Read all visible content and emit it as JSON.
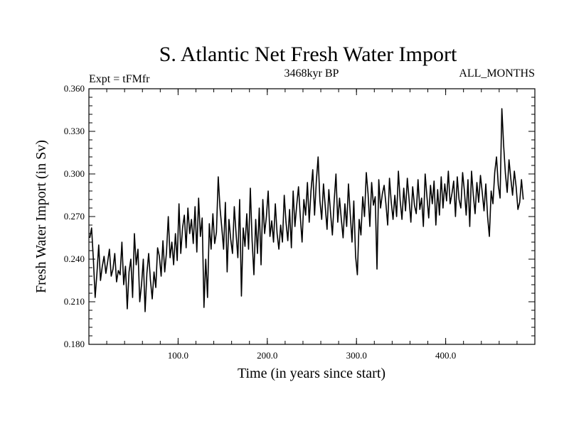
{
  "chart_data": {
    "type": "line",
    "title": "S. Atlantic Net Fresh Water Import",
    "subtitle_left": "Expt = tFMfr",
    "subtitle_center": "3468kyr BP",
    "subtitle_right": "ALL_MONTHS",
    "xlabel": "Time (in years since start)",
    "ylabel": "Fresh Water Import (in Sv)",
    "xlim": [
      0,
      500
    ],
    "ylim": [
      0.18,
      0.36
    ],
    "x_ticks": [
      100,
      200,
      300,
      400
    ],
    "x_tick_labels": [
      "100.0",
      "200.0",
      "300.0",
      "400.0"
    ],
    "y_ticks": [
      0.18,
      0.21,
      0.24,
      0.27,
      0.3,
      0.33,
      0.36
    ],
    "y_tick_labels": [
      "0.180",
      "0.210",
      "0.240",
      "0.270",
      "0.300",
      "0.330",
      "0.360"
    ],
    "series": [
      {
        "name": "Net Fresh Water Import",
        "color": "#000000",
        "x_start": 1,
        "x_step": 2,
        "values": [
          0.255,
          0.262,
          0.24,
          0.213,
          0.23,
          0.25,
          0.225,
          0.235,
          0.242,
          0.23,
          0.238,
          0.247,
          0.228,
          0.233,
          0.244,
          0.224,
          0.232,
          0.229,
          0.252,
          0.222,
          0.235,
          0.205,
          0.231,
          0.24,
          0.213,
          0.258,
          0.236,
          0.247,
          0.21,
          0.222,
          0.24,
          0.203,
          0.23,
          0.244,
          0.225,
          0.212,
          0.231,
          0.22,
          0.248,
          0.242,
          0.228,
          0.253,
          0.231,
          0.245,
          0.27,
          0.241,
          0.252,
          0.236,
          0.258,
          0.239,
          0.279,
          0.244,
          0.262,
          0.271,
          0.248,
          0.276,
          0.258,
          0.268,
          0.251,
          0.277,
          0.245,
          0.283,
          0.256,
          0.269,
          0.206,
          0.24,
          0.213,
          0.265,
          0.247,
          0.272,
          0.251,
          0.259,
          0.298,
          0.276,
          0.262,
          0.247,
          0.28,
          0.231,
          0.268,
          0.254,
          0.244,
          0.277,
          0.258,
          0.241,
          0.282,
          0.214,
          0.262,
          0.249,
          0.272,
          0.247,
          0.29,
          0.253,
          0.229,
          0.268,
          0.244,
          0.276,
          0.236,
          0.282,
          0.258,
          0.27,
          0.288,
          0.256,
          0.267,
          0.252,
          0.279,
          0.258,
          0.247,
          0.264,
          0.252,
          0.285,
          0.266,
          0.253,
          0.275,
          0.248,
          0.288,
          0.263,
          0.278,
          0.291,
          0.27,
          0.252,
          0.282,
          0.271,
          0.294,
          0.266,
          0.288,
          0.303,
          0.271,
          0.295,
          0.312,
          0.281,
          0.268,
          0.293,
          0.277,
          0.261,
          0.289,
          0.272,
          0.257,
          0.281,
          0.3,
          0.266,
          0.283,
          0.268,
          0.255,
          0.279,
          0.263,
          0.293,
          0.272,
          0.252,
          0.281,
          0.242,
          0.229,
          0.268,
          0.257,
          0.284,
          0.27,
          0.301,
          0.286,
          0.263,
          0.294,
          0.278,
          0.284,
          0.233,
          0.296,
          0.276,
          0.286,
          0.292,
          0.279,
          0.264,
          0.297,
          0.28,
          0.268,
          0.285,
          0.27,
          0.302,
          0.281,
          0.268,
          0.29,
          0.274,
          0.297,
          0.282,
          0.266,
          0.291,
          0.278,
          0.272,
          0.296,
          0.275,
          0.283,
          0.263,
          0.3,
          0.284,
          0.269,
          0.292,
          0.279,
          0.295,
          0.264,
          0.289,
          0.271,
          0.298,
          0.276,
          0.293,
          0.281,
          0.302,
          0.279,
          0.286,
          0.295,
          0.27,
          0.298,
          0.282,
          0.276,
          0.301,
          0.288,
          0.271,
          0.296,
          0.263,
          0.302,
          0.285,
          0.272,
          0.294,
          0.28,
          0.299,
          0.287,
          0.274,
          0.293,
          0.27,
          0.256,
          0.288,
          0.279,
          0.301,
          0.312,
          0.292,
          0.283,
          0.346,
          0.32,
          0.3,
          0.287,
          0.31,
          0.297,
          0.285,
          0.302,
          0.291,
          0.275,
          0.28,
          0.296,
          0.282
        ]
      }
    ]
  }
}
